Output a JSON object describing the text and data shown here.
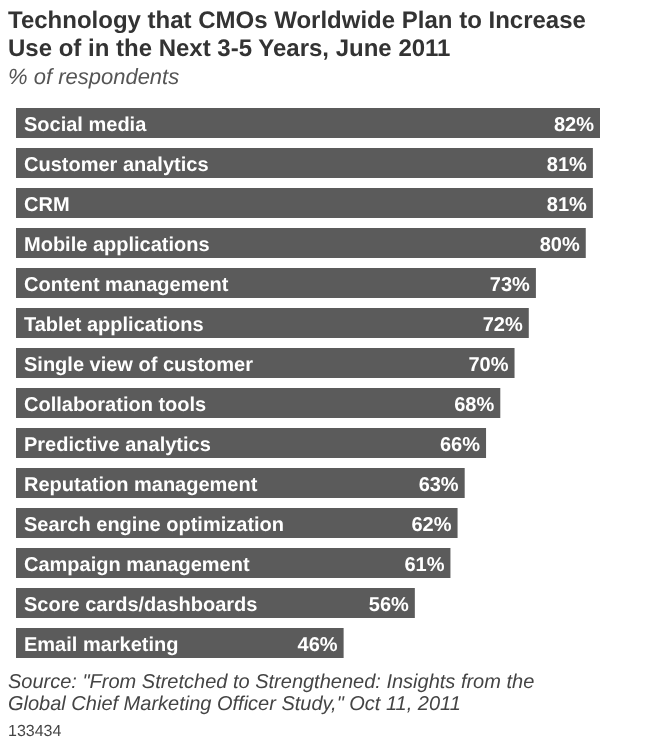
{
  "chart_data": {
    "type": "bar",
    "orientation": "horizontal",
    "title": "Technology that CMOs Worldwide Plan to Increase Use of in the Next 3-5 Years, June 2011",
    "subtitle": "% of respondents",
    "categories": [
      "Social media",
      "Customer analytics",
      "CRM",
      "Mobile applications",
      "Content management",
      "Tablet applications",
      "Single view of customer",
      "Collaboration tools",
      "Predictive analytics",
      "Reputation management",
      "Search engine optimization",
      "Campaign management",
      "Score cards/dashboards",
      "Email marketing"
    ],
    "values": [
      82,
      81,
      81,
      80,
      73,
      72,
      70,
      68,
      66,
      63,
      62,
      61,
      56,
      46
    ],
    "value_labels": [
      "82%",
      "81%",
      "81%",
      "80%",
      "73%",
      "72%",
      "70%",
      "68%",
      "66%",
      "63%",
      "62%",
      "61%",
      "56%",
      "46%"
    ],
    "color": "#5b5b5b",
    "annotations": [
      "Source: \"From Stretched to Strengthened: Insights from the Global Chief Marketing Officer Study,\" Oct 11, 2011",
      "133434"
    ]
  }
}
